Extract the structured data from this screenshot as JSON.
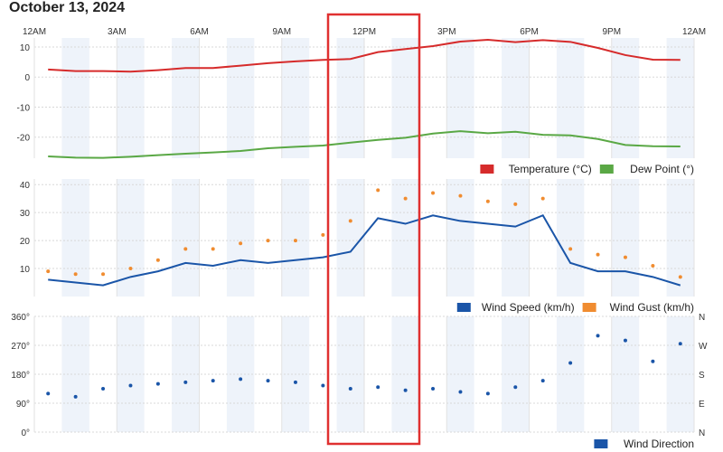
{
  "title": "October 13, 2024",
  "chart_data": [
    {
      "type": "line",
      "x_ticks": [
        "12AM",
        "3AM",
        "6AM",
        "9AM",
        "12PM",
        "3PM",
        "6PM",
        "9PM",
        "12AM"
      ],
      "y_ticks": [
        "10",
        "0",
        "-10",
        "-20"
      ],
      "ylim": [
        -27,
        13
      ],
      "x_hours": [
        0,
        1,
        2,
        3,
        4,
        5,
        6,
        7,
        8,
        9,
        10,
        11,
        12,
        13,
        14,
        15,
        16,
        17,
        18,
        19,
        20,
        21,
        22,
        23
      ],
      "series": [
        {
          "name": "Temperature (°C)",
          "color": "#d62b2b",
          "values": [
            2.5,
            2,
            2,
            1.8,
            2.3,
            3,
            3,
            3.8,
            4.6,
            5.2,
            5.7,
            6,
            8.3,
            9.3,
            10.3,
            11.8,
            12.4,
            11.6,
            12.3,
            11.7,
            9.7,
            7.3,
            5.8,
            5.7
          ]
        },
        {
          "name": "Dew Point (°)",
          "color": "#5aa845",
          "values": [
            -26.4,
            -26.8,
            -26.9,
            -26.5,
            -26,
            -25.5,
            -25.1,
            -24.6,
            -23.7,
            -23.2,
            -22.8,
            -21.8,
            -20.9,
            -20.2,
            -18.8,
            -18,
            -18.7,
            -18.2,
            -19.2,
            -19.4,
            -20.6,
            -22.6,
            -23,
            -23.1
          ]
        }
      ],
      "grid": true,
      "legend": "bottom-right"
    },
    {
      "type": "line",
      "x_ticks": [],
      "y_ticks": [
        "40",
        "30",
        "20",
        "10"
      ],
      "ylim": [
        0,
        42
      ],
      "x_hours": [
        0,
        1,
        2,
        3,
        4,
        5,
        6,
        7,
        8,
        9,
        10,
        11,
        12,
        13,
        14,
        15,
        16,
        17,
        18,
        19,
        20,
        21,
        22,
        23
      ],
      "series": [
        {
          "name": "Wind Speed (km/h)",
          "color": "#1a55a8",
          "style": "line",
          "values": [
            6,
            5,
            4,
            7,
            9,
            12,
            11,
            13,
            12,
            13,
            14,
            16,
            28,
            26,
            29,
            27,
            26,
            25,
            29,
            12,
            9,
            9,
            7,
            4
          ]
        },
        {
          "name": "Wind Gust (km/h)",
          "color": "#f08c30",
          "style": "dots",
          "values": [
            9,
            8,
            8,
            10,
            13,
            17,
            17,
            19,
            20,
            20,
            22,
            27,
            38,
            35,
            37,
            36,
            34,
            33,
            35,
            17,
            15,
            14,
            11,
            7
          ]
        }
      ],
      "grid": true,
      "legend": "bottom-right"
    },
    {
      "type": "scatter",
      "x_ticks": [],
      "y_ticks": [
        "360°",
        "270°",
        "180°",
        "90°",
        "0°"
      ],
      "y_ticks_right": [
        "N",
        "W",
        "S",
        "E",
        "N"
      ],
      "ylim": [
        0,
        360
      ],
      "x_hours": [
        0,
        1,
        2,
        3,
        4,
        5,
        6,
        7,
        8,
        9,
        10,
        11,
        12,
        13,
        14,
        15,
        16,
        17,
        18,
        19,
        20,
        21,
        22,
        23
      ],
      "series": [
        {
          "name": "Wind Direction",
          "color": "#1a55a8",
          "values": [
            120,
            110,
            135,
            145,
            150,
            155,
            160,
            165,
            160,
            155,
            145,
            135,
            140,
            130,
            135,
            125,
            120,
            140,
            160,
            215,
            300,
            285,
            220,
            275
          ]
        }
      ],
      "grid": true,
      "legend": "bottom-right"
    }
  ]
}
